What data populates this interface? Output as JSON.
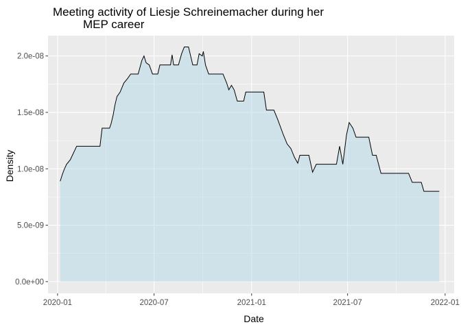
{
  "chart_data": {
    "type": "area",
    "title_lines": [
      "Meeting activity of Liesje Schreinemacher during her",
      "MEP career"
    ],
    "xlabel": "Date",
    "ylabel": "Density",
    "x_ticks": [
      "2020-01",
      "2020-07",
      "2021-01",
      "2021-07",
      "2022-01"
    ],
    "y_ticks": [
      "0.0e+00",
      "5.0e-09",
      "1.0e-08",
      "1.5e-08",
      "2.0e-08"
    ],
    "ylim": [
      -1.04e-09,
      2.18e-08
    ],
    "xlim": [
      "2019-12-14",
      "2022-01-18"
    ],
    "grid": true,
    "legend": "none",
    "colors": {
      "panel": "#ebebeb",
      "grid": "#ffffff",
      "fill": "#add8e6",
      "line": "#000000"
    },
    "fill_opacity": 0.45,
    "series": [
      {
        "values": [
          [
            "2020-01-06",
            8.9e-09
          ],
          [
            "2020-01-10",
            9.5e-09
          ],
          [
            "2020-01-14",
            1e-08
          ],
          [
            "2020-01-18",
            1.04e-08
          ],
          [
            "2020-01-25",
            1.08e-08
          ],
          [
            "2020-01-29",
            1.12e-08
          ],
          [
            "2020-02-02",
            1.16e-08
          ],
          [
            "2020-02-06",
            1.2e-08
          ],
          [
            "2020-03-21",
            1.2e-08
          ],
          [
            "2020-03-25",
            1.36e-08
          ],
          [
            "2020-04-08",
            1.36e-08
          ],
          [
            "2020-04-11",
            1.4e-08
          ],
          [
            "2020-04-15",
            1.48e-08
          ],
          [
            "2020-04-18",
            1.56e-08
          ],
          [
            "2020-04-22",
            1.64e-08
          ],
          [
            "2020-04-28",
            1.68e-08
          ],
          [
            "2020-05-05",
            1.76e-08
          ],
          [
            "2020-05-12",
            1.8e-08
          ],
          [
            "2020-05-18",
            1.84e-08
          ],
          [
            "2020-06-01",
            1.84e-08
          ],
          [
            "2020-06-08",
            1.96e-08
          ],
          [
            "2020-06-12",
            2e-08
          ],
          [
            "2020-06-16",
            1.94e-08
          ],
          [
            "2020-06-22",
            1.92e-08
          ],
          [
            "2020-06-28",
            1.84e-08
          ],
          [
            "2020-07-08",
            1.84e-08
          ],
          [
            "2020-07-12",
            1.92e-08
          ],
          [
            "2020-08-01",
            1.92e-08
          ],
          [
            "2020-08-04",
            2.01e-08
          ],
          [
            "2020-08-07",
            1.92e-08
          ],
          [
            "2020-08-16",
            1.92e-08
          ],
          [
            "2020-08-22",
            2.02e-08
          ],
          [
            "2020-08-27",
            2.08e-08
          ],
          [
            "2020-09-04",
            2.08e-08
          ],
          [
            "2020-09-12",
            1.92e-08
          ],
          [
            "2020-09-20",
            1.92e-08
          ],
          [
            "2020-09-24",
            2.02e-08
          ],
          [
            "2020-09-30",
            2e-08
          ],
          [
            "2020-10-02",
            2.04e-08
          ],
          [
            "2020-10-06",
            1.92e-08
          ],
          [
            "2020-10-12",
            1.84e-08
          ],
          [
            "2020-11-08",
            1.84e-08
          ],
          [
            "2020-11-15",
            1.76e-08
          ],
          [
            "2020-11-19",
            1.7e-08
          ],
          [
            "2020-11-24",
            1.74e-08
          ],
          [
            "2020-11-29",
            1.7e-08
          ],
          [
            "2020-12-05",
            1.6e-08
          ],
          [
            "2020-12-17",
            1.6e-08
          ],
          [
            "2020-12-21",
            1.68e-08
          ],
          [
            "2021-01-24",
            1.68e-08
          ],
          [
            "2021-01-29",
            1.52e-08
          ],
          [
            "2021-02-12",
            1.52e-08
          ],
          [
            "2021-02-19",
            1.44e-08
          ],
          [
            "2021-03-02",
            1.3e-08
          ],
          [
            "2021-03-09",
            1.22e-08
          ],
          [
            "2021-03-16",
            1.18e-08
          ],
          [
            "2021-03-23",
            1.1e-08
          ],
          [
            "2021-03-29",
            1.05e-08
          ],
          [
            "2021-04-02",
            1.12e-08
          ],
          [
            "2021-04-19",
            1.12e-08
          ],
          [
            "2021-04-26",
            9.7e-09
          ],
          [
            "2021-05-03",
            1.04e-08
          ],
          [
            "2021-06-10",
            1.04e-08
          ],
          [
            "2021-06-16",
            1.2e-08
          ],
          [
            "2021-06-22",
            1.04e-08
          ],
          [
            "2021-06-29",
            1.3e-08
          ],
          [
            "2021-07-04",
            1.41e-08
          ],
          [
            "2021-07-11",
            1.36e-08
          ],
          [
            "2021-07-17",
            1.28e-08
          ],
          [
            "2021-08-10",
            1.28e-08
          ],
          [
            "2021-08-17",
            1.12e-08
          ],
          [
            "2021-08-24",
            1.12e-08
          ],
          [
            "2021-09-02",
            9.6e-09
          ],
          [
            "2021-10-24",
            9.6e-09
          ],
          [
            "2021-10-31",
            8.8e-09
          ],
          [
            "2021-11-17",
            8.8e-09
          ],
          [
            "2021-11-22",
            8e-09
          ],
          [
            "2021-12-21",
            8e-09
          ]
        ]
      }
    ]
  }
}
